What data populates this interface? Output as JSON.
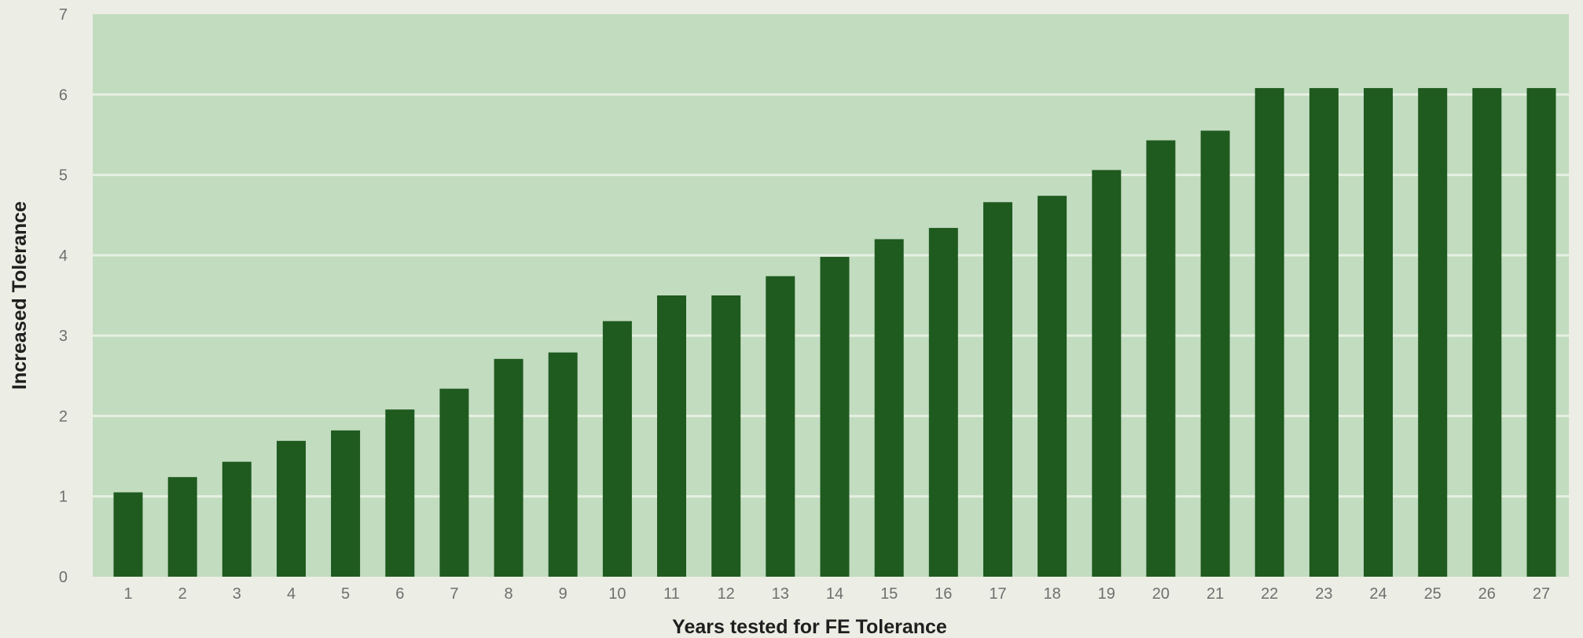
{
  "chart_data": {
    "type": "bar",
    "title": "",
    "xlabel": "Years tested for FE Tolerance",
    "ylabel": "Increased Tolerance",
    "categories": [
      "1",
      "2",
      "3",
      "4",
      "5",
      "6",
      "7",
      "8",
      "9",
      "10",
      "11",
      "12",
      "13",
      "14",
      "15",
      "16",
      "17",
      "18",
      "19",
      "20",
      "21",
      "22",
      "23",
      "24",
      "25",
      "26",
      "27"
    ],
    "values": [
      1.05,
      1.24,
      1.43,
      1.69,
      1.82,
      2.08,
      2.34,
      2.71,
      2.79,
      3.18,
      3.5,
      3.5,
      3.74,
      3.98,
      4.2,
      4.34,
      4.66,
      4.74,
      5.06,
      5.43,
      5.55,
      6.08,
      6.08,
      6.08,
      6.08,
      6.08,
      6.08
    ],
    "ylim": [
      0,
      7
    ],
    "yticks": [
      "0",
      "1",
      "2",
      "3",
      "4",
      "5",
      "6",
      "7"
    ],
    "grid": true,
    "colors": {
      "bar": "#1f5a1f",
      "plot_background": "#c2dcc0",
      "gridline": "#e6f0e2"
    }
  }
}
